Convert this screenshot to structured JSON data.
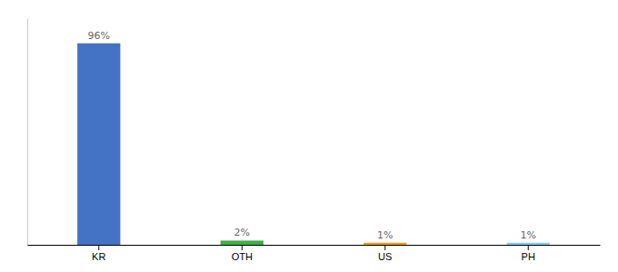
{
  "chart_data": {
    "type": "bar",
    "categories": [
      "KR",
      "OTH",
      "US",
      "PH"
    ],
    "values": [
      96,
      2,
      1,
      1
    ],
    "value_labels": [
      "96%",
      "2%",
      "1%",
      "1%"
    ],
    "colors": [
      "#4472C4",
      "#3CB043",
      "#E8A020",
      "#87CEEB"
    ],
    "ylim": [
      0,
      108
    ],
    "data_labels": true,
    "tick_labels": "x",
    "grid": false
  }
}
